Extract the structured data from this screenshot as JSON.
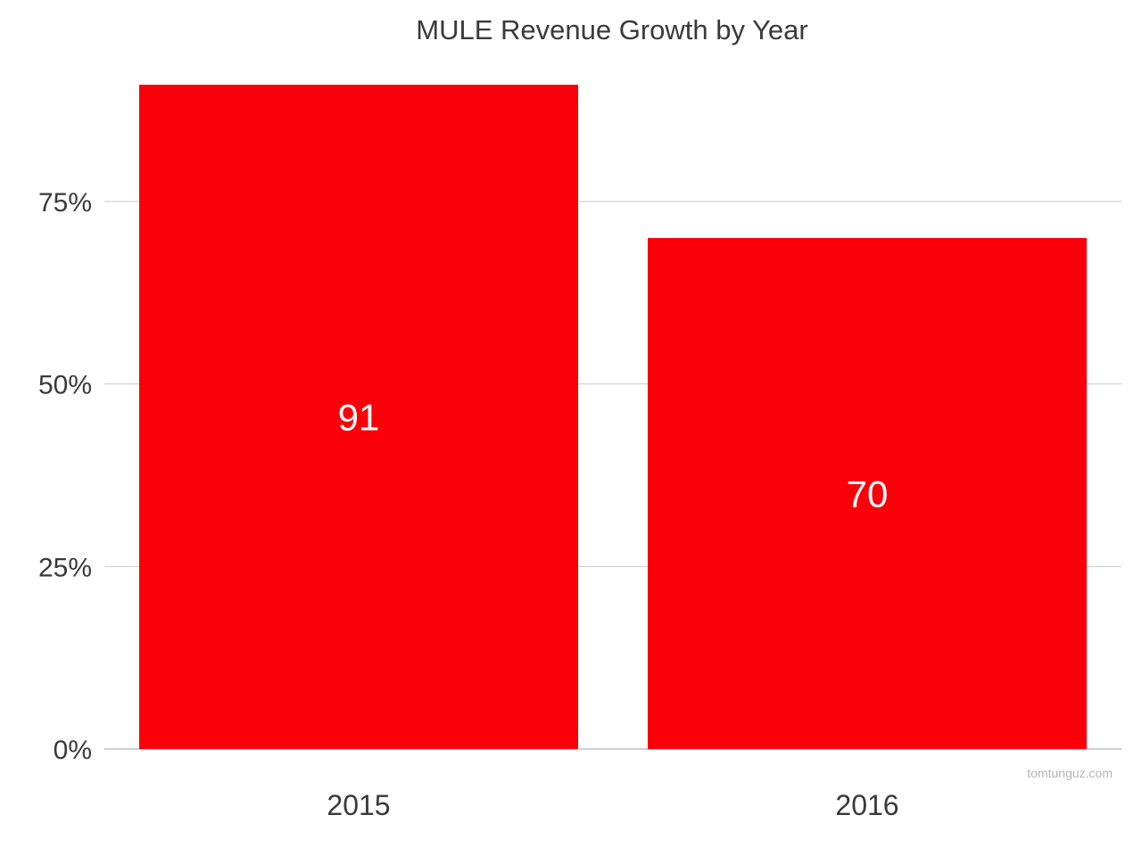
{
  "chart_data": {
    "type": "bar",
    "title": "MULE Revenue Growth by Year",
    "categories": [
      "2015",
      "2016"
    ],
    "values": [
      91,
      70
    ],
    "data_labels": [
      "91",
      "70"
    ],
    "y_ticks": [
      {
        "value": 0,
        "label": "0%"
      },
      {
        "value": 25,
        "label": "25%"
      },
      {
        "value": 50,
        "label": "50%"
      },
      {
        "value": 75,
        "label": "75%"
      }
    ],
    "ylim": [
      0,
      91
    ],
    "xlabel": "",
    "ylabel": "",
    "grid": true,
    "legend": "none",
    "bar_color": "#fa0109"
  },
  "watermark": "tomtunguz.com"
}
